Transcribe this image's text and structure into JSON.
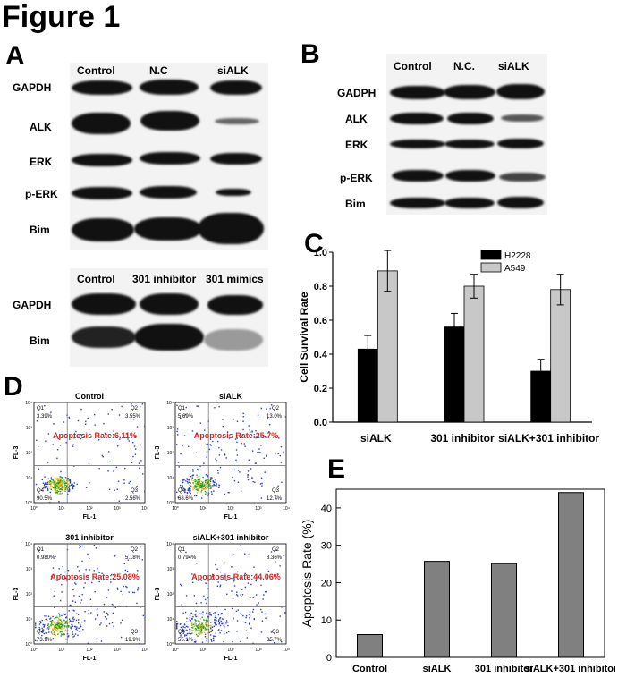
{
  "figure_title": "Figure 1",
  "panels": {
    "A": "A",
    "B": "B",
    "C": "C",
    "D": "D",
    "E": "E"
  },
  "panel_a": {
    "top_columns": [
      "Control",
      "N.C",
      "siALK"
    ],
    "top_rows": [
      "GAPDH",
      "ALK",
      "ERK",
      "p-ERK",
      "Bim"
    ],
    "bottom_columns": [
      "Control",
      "301 inhibitor",
      "301 mimics"
    ],
    "bottom_rows": [
      "GAPDH",
      "Bim"
    ]
  },
  "panel_b": {
    "columns": [
      "Control",
      "N.C.",
      "siALK"
    ],
    "rows": [
      "GADPH",
      "ALK",
      "ERK",
      "p-ERK",
      "Bim"
    ]
  },
  "panel_d": {
    "x_axis": "FL-1",
    "y_axis": "FL-3",
    "plots": [
      {
        "title": "Control",
        "q1": "3.39%",
        "q2": "3.55%",
        "q3": "2.56%",
        "q4": "90.5%",
        "rate": "Apoptosis Rate:6.11%"
      },
      {
        "title": "siALK",
        "q1": "5.69%",
        "q2": "13.0%",
        "q3": "12.7%",
        "q4": "68.6%",
        "rate": "Apoptosis Rate:25.7%"
      },
      {
        "title": "301 inhibitor",
        "q1": "0.980%",
        "q2": "5.18%",
        "q3": "19.9%",
        "q4": "73.9%",
        "rate": "Apoptosis Rate:25.08%"
      },
      {
        "title": "siALK+301 inhibitor",
        "q1": "0.794%",
        "q2": "8.36%",
        "q3": "35.7%",
        "q4": "55.1%",
        "rate": "Apoptosis Rate:44.06%"
      }
    ],
    "quadrant_labels": [
      "Q1",
      "Q2",
      "Q3",
      "Q4"
    ],
    "ticks": [
      "10⁰",
      "10¹",
      "10²",
      "10³",
      "10⁴"
    ]
  },
  "chart_data": [
    {
      "panel": "C",
      "type": "bar",
      "categories": [
        "siALK",
        "301 inhibitor",
        "siALK+301 inhibitor"
      ],
      "series": [
        {
          "name": "H2228",
          "values": [
            0.43,
            0.56,
            0.3
          ],
          "errors": [
            0.08,
            0.08,
            0.07
          ],
          "color": "#000000"
        },
        {
          "name": "A549",
          "values": [
            0.89,
            0.8,
            0.78
          ],
          "errors": [
            0.12,
            0.07,
            0.09
          ],
          "color": "#c8c8c8"
        }
      ],
      "ylabel": "Cell Survival Rate",
      "ylim": [
        0.0,
        1.0
      ],
      "yticks": [
        "0.0",
        "0.2",
        "0.4",
        "0.6",
        "0.8",
        "1.0"
      ],
      "legend": "top-right"
    },
    {
      "panel": "E",
      "type": "bar",
      "categories": [
        "Control",
        "siALK",
        "301 inhibitor",
        "siALK+301 inhibitor"
      ],
      "values": [
        6.1,
        25.7,
        25.1,
        44.1
      ],
      "color": "#808080",
      "ylabel": "Apoptosis Rate (%)",
      "ylim": [
        0,
        45
      ],
      "yticks": [
        "0",
        "10",
        "20",
        "30",
        "40"
      ]
    }
  ]
}
